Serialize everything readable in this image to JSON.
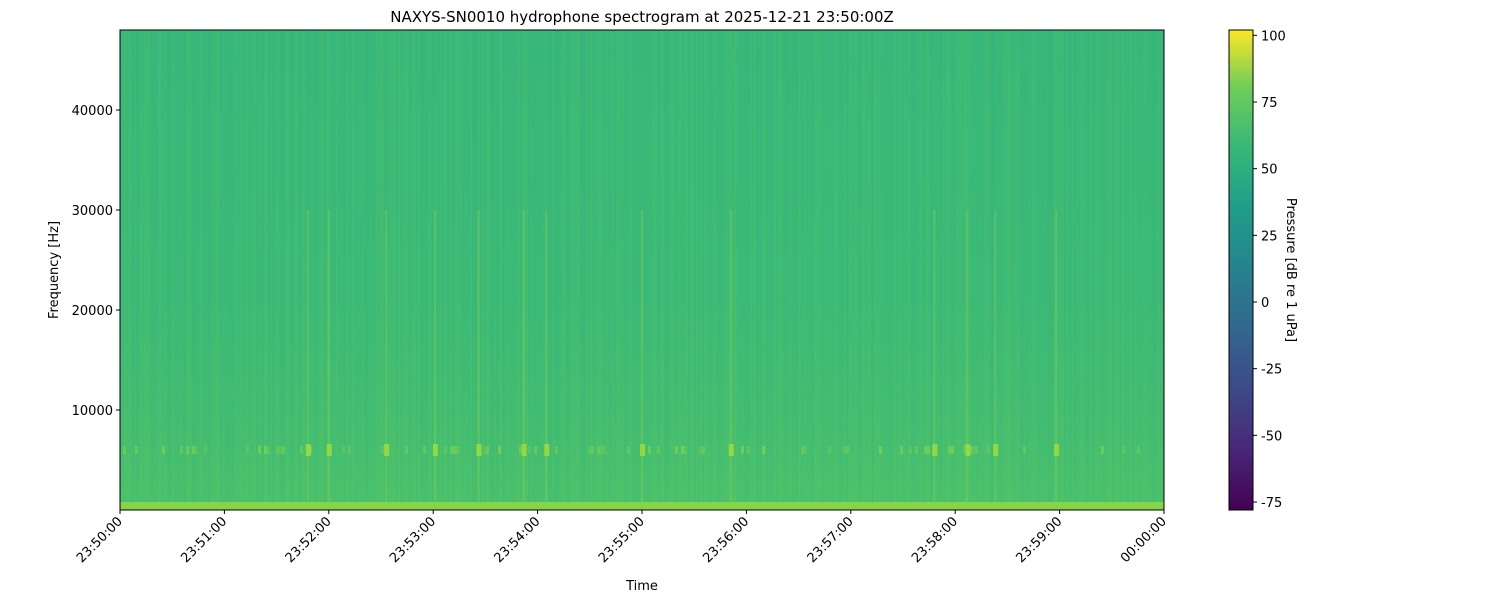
{
  "chart_data": {
    "type": "heatmap",
    "title": "NAXYS-SN0010 hydrophone spectrogram at 2025-12-21 23:50:00Z",
    "xlabel": "Time",
    "ylabel": "Frequency [Hz]",
    "x_ticks": [
      "23:50:00",
      "23:51:00",
      "23:52:00",
      "23:53:00",
      "23:54:00",
      "23:55:00",
      "23:56:00",
      "23:57:00",
      "23:58:00",
      "23:59:00",
      "00:00:00"
    ],
    "y_ticks": [
      10000,
      20000,
      30000,
      40000
    ],
    "xlim_seconds": [
      0,
      600
    ],
    "ylim": [
      0,
      48000
    ],
    "colormap": "viridis",
    "colorbar": {
      "label": "Pressure [dB re 1 uPa]",
      "ticks": [
        100,
        75,
        50,
        25,
        0,
        -25,
        -50,
        -75
      ],
      "range": [
        -78,
        102
      ]
    },
    "background_level_db": 45,
    "low_frequency_band": {
      "max_hz": 800,
      "level_db": 65
    },
    "tonal_band": {
      "center_hz": 6000,
      "level_db": 62
    },
    "transient_event_times": [
      "23:51:48",
      "23:52:00",
      "23:52:33",
      "23:53:01",
      "23:53:26",
      "23:53:52",
      "23:54:05",
      "23:55:00",
      "23:55:51",
      "23:57:48",
      "23:58:07",
      "23:58:23",
      "23:58:58"
    ],
    "grid": false
  }
}
